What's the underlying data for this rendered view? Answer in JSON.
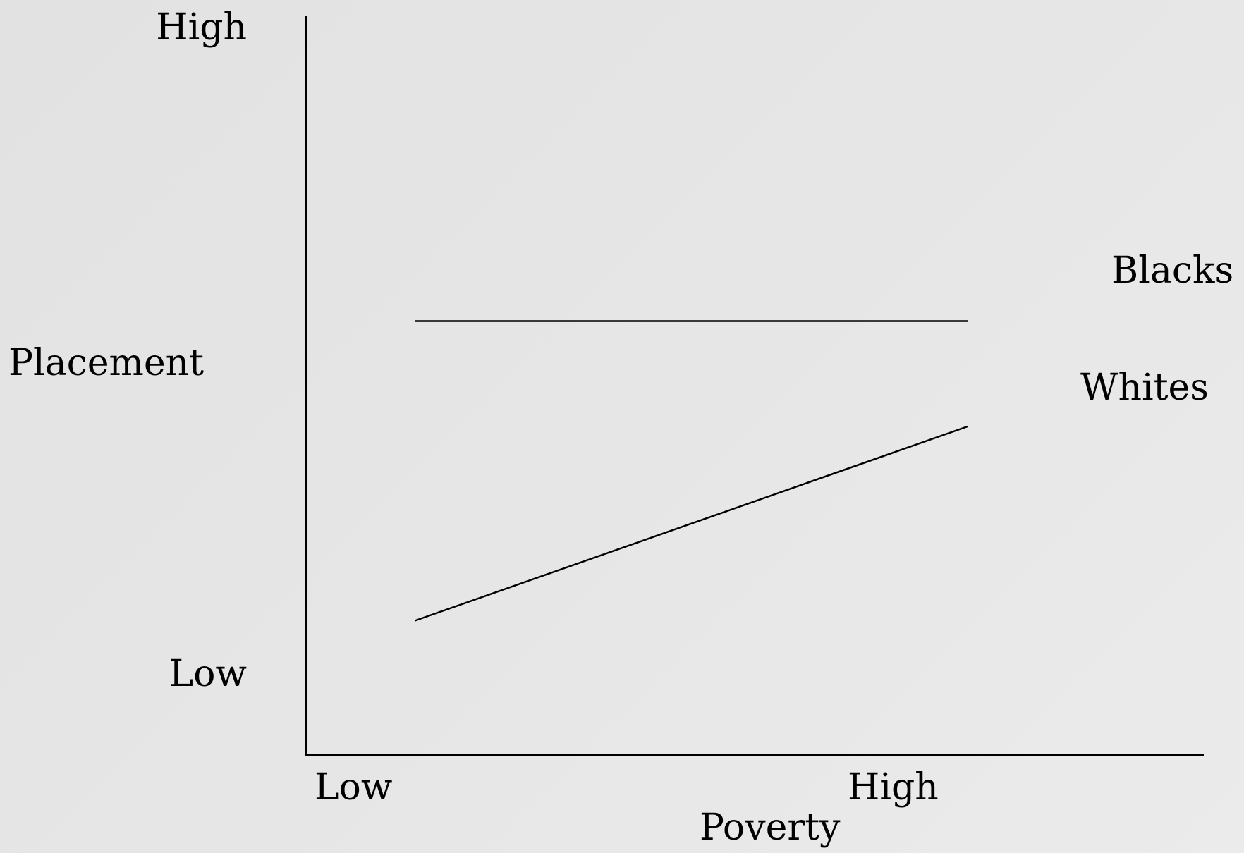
{
  "chart_data": {
    "type": "line",
    "title": "",
    "xlabel": "Poverty",
    "ylabel": "Placement",
    "x_tick_labels": {
      "low": "Low",
      "high": "High"
    },
    "y_tick_labels": {
      "low": "Low",
      "high": "High"
    },
    "xlim": [
      0,
      1
    ],
    "ylim": [
      0,
      1
    ],
    "grid": false,
    "legend": "none",
    "series": [
      {
        "name": "Blacks",
        "x": [
          0.137,
          0.833
        ],
        "y": [
          0.63,
          0.63
        ]
      },
      {
        "name": "Whites",
        "x": [
          0.137,
          0.833
        ],
        "y": [
          0.195,
          0.477
        ]
      }
    ]
  },
  "colors": {
    "background": "#e6e6e6",
    "lines": "#000000"
  }
}
